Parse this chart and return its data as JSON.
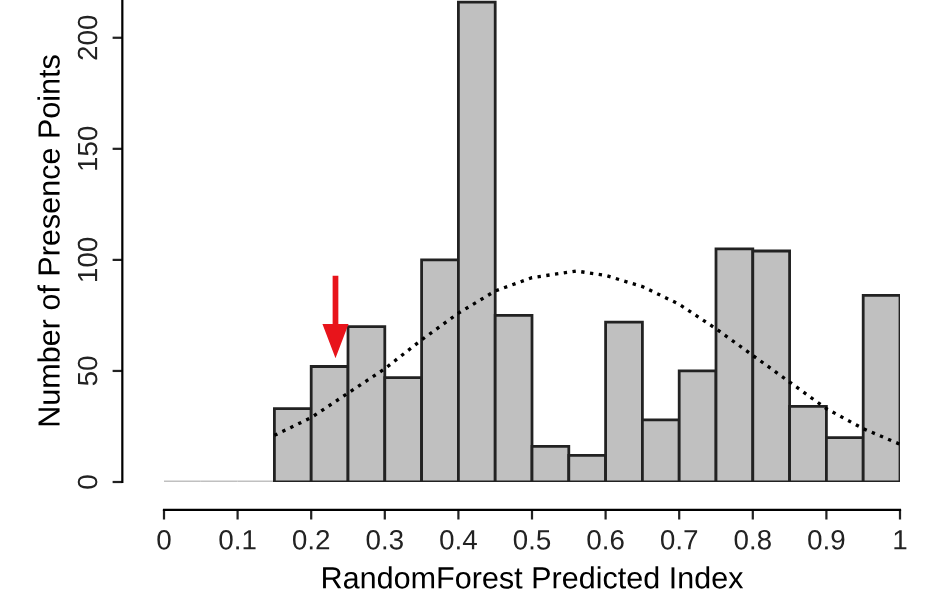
{
  "chart_data": {
    "type": "histogram",
    "xlabel": "RandomForest Predicted Index",
    "ylabel": "Number of Presence Points",
    "bins": [
      0,
      0.05,
      0.1,
      0.15,
      0.2,
      0.25,
      0.3,
      0.35,
      0.4,
      0.45,
      0.5,
      0.55,
      0.6,
      0.65,
      0.7,
      0.75,
      0.8,
      0.85,
      0.9,
      0.95,
      1.0
    ],
    "values": [
      0,
      0,
      0,
      33,
      52,
      70,
      47,
      100,
      216,
      75,
      16,
      12,
      72,
      28,
      50,
      105,
      104,
      34,
      20,
      84
    ],
    "color": "#c0c0c0",
    "series": [
      {
        "type": "line",
        "line_style": "dotted",
        "color": "#000000",
        "x": [
          0.15,
          0.2,
          0.25,
          0.3,
          0.35,
          0.4,
          0.45,
          0.5,
          0.56,
          0.6,
          0.65,
          0.7,
          0.75,
          0.8,
          0.85,
          0.9,
          0.95,
          1.0
        ],
        "values": [
          21,
          29,
          40,
          51,
          64,
          76,
          86,
          92,
          95,
          93,
          88,
          80,
          69,
          57,
          45,
          33,
          24,
          17
        ]
      }
    ],
    "xlim": [
      0,
      1
    ],
    "ylim": [
      0,
      217
    ],
    "xticks": [
      0,
      0.1,
      0.2,
      0.3,
      0.4,
      0.5,
      0.6,
      0.7,
      0.8,
      0.9,
      1
    ],
    "yticks": [
      0,
      50,
      100,
      150,
      200
    ],
    "grid": false,
    "legend": false
  }
}
